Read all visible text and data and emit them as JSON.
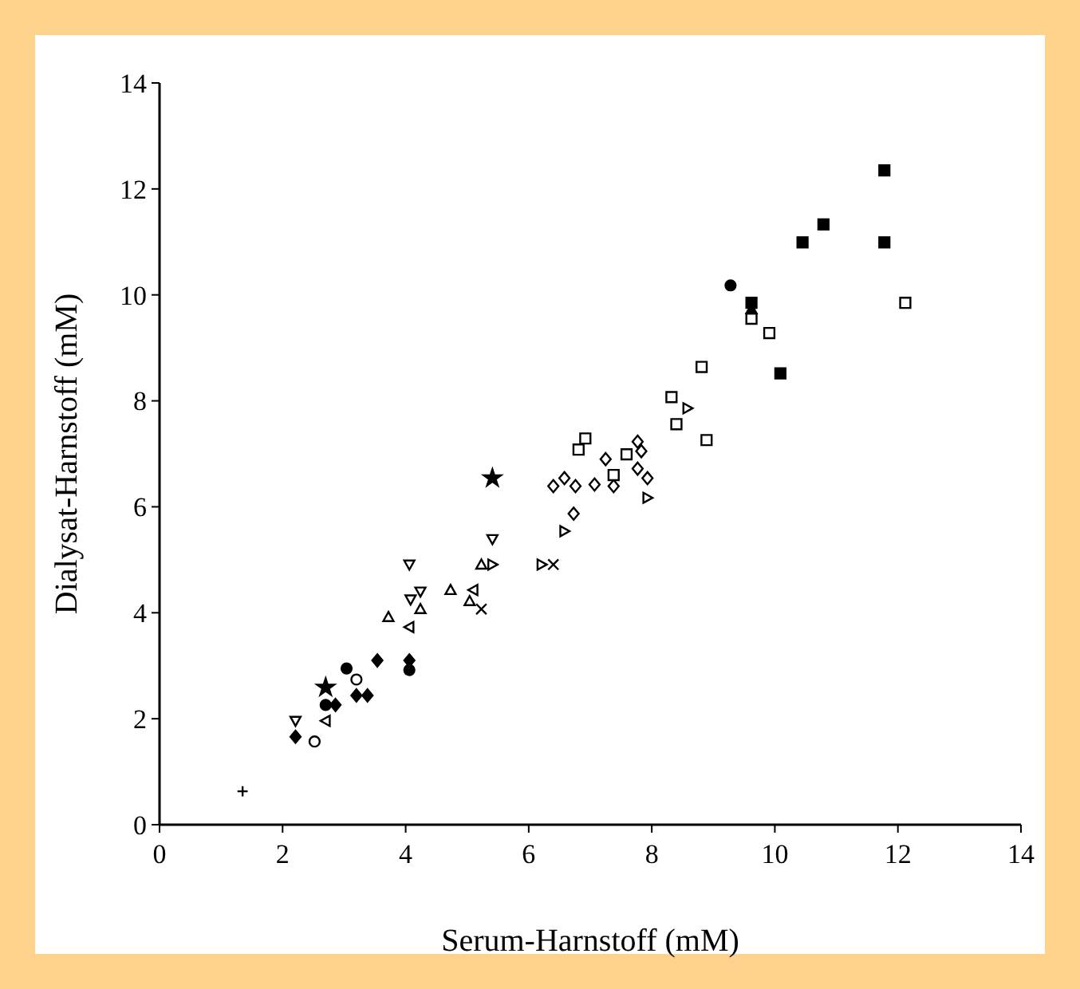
{
  "chart_data": {
    "type": "scatter",
    "xlabel": "Serum-Harnstoff (mM)",
    "ylabel": "Dialysat-Harnstoff (mM)",
    "xlim": [
      0,
      14
    ],
    "ylim": [
      0,
      14
    ],
    "xticks": [
      0,
      2,
      4,
      6,
      8,
      10,
      12,
      14
    ],
    "yticks": [
      0,
      2,
      4,
      6,
      8,
      10,
      12,
      14
    ],
    "grid": false,
    "series": [
      {
        "color": "#000000",
        "marker": "plus",
        "x": [
          1.35
        ],
        "values": [
          0.63
        ]
      },
      {
        "color": "#000000",
        "marker": "diamond",
        "x": [
          2.21,
          2.86,
          3.2,
          3.38,
          3.54,
          4.06
        ],
        "values": [
          1.66,
          2.26,
          2.44,
          2.44,
          3.1,
          3.1
        ]
      },
      {
        "color": "#ffffff",
        "marker": "triangle-down",
        "x": [
          2.21,
          4.06,
          4.08,
          4.24,
          5.41
        ],
        "values": [
          1.96,
          4.91,
          4.25,
          4.4,
          5.39
        ]
      },
      {
        "color": "#ffffff",
        "marker": "circle",
        "x": [
          2.52,
          3.2
        ],
        "values": [
          1.57,
          2.74
        ]
      },
      {
        "color": "#ffffff",
        "marker": "triangle-left",
        "x": [
          2.7,
          4.06,
          5.1
        ],
        "values": [
          1.96,
          3.73,
          4.43
        ]
      },
      {
        "color": "#000000",
        "marker": "star",
        "x": [
          2.7,
          5.41
        ],
        "values": [
          2.59,
          6.54
        ]
      },
      {
        "color": "#000000",
        "marker": "circle",
        "x": [
          2.7,
          3.04,
          4.06,
          9.28
        ],
        "values": [
          2.26,
          2.95,
          2.92,
          10.18
        ]
      },
      {
        "color": "#ffffff",
        "marker": "triangle",
        "x": [
          3.72,
          4.24,
          4.73,
          5.04,
          5.23
        ],
        "values": [
          3.92,
          4.07,
          4.43,
          4.22,
          4.91
        ]
      },
      {
        "color": "#000000",
        "marker": "cross",
        "x": [
          5.23,
          6.4
        ],
        "values": [
          4.07,
          4.91
        ]
      },
      {
        "color": "#ffffff",
        "marker": "triangle-right",
        "x": [
          5.41,
          6.21,
          6.58,
          7.93,
          8.58
        ],
        "values": [
          4.91,
          4.91,
          5.54,
          6.17,
          7.86
        ]
      },
      {
        "color": "#ffffff",
        "marker": "diamond",
        "x": [
          6.73,
          6.4,
          6.58,
          6.76,
          7.07,
          7.25,
          7.38,
          7.77,
          7.83,
          7.77,
          7.93
        ],
        "values": [
          5.87,
          6.39,
          6.54,
          6.39,
          6.42,
          6.9,
          6.39,
          7.23,
          7.05,
          6.72,
          6.54
        ]
      },
      {
        "color": "#ffffff",
        "marker": "square",
        "x": [
          6.81,
          6.92,
          7.38,
          7.59,
          8.32,
          8.4,
          8.81,
          8.89,
          9.62,
          9.91,
          12.12
        ],
        "values": [
          7.08,
          7.29,
          6.6,
          6.99,
          8.07,
          7.56,
          8.64,
          7.26,
          9.55,
          9.28,
          9.85
        ]
      },
      {
        "color": "#000000",
        "marker": "square",
        "x": [
          11.78,
          10.79,
          10.45,
          11.78,
          9.62,
          10.09
        ],
        "values": [
          12.35,
          11.33,
          10.99,
          10.99,
          9.85,
          8.52
        ]
      },
      {
        "color": "#000000",
        "marker": "triangle",
        "x": [
          9.62
        ],
        "values": [
          9.73
        ]
      }
    ]
  }
}
